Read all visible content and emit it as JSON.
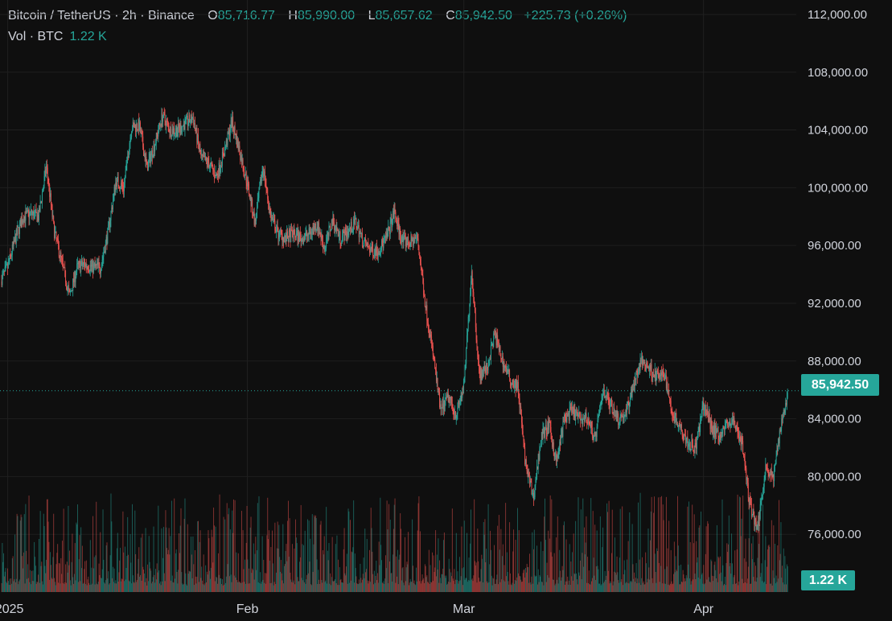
{
  "legend": {
    "symbol": "Bitcoin / TetherUS · 2h · Binance",
    "open_label": "O",
    "open": "85,716.77",
    "high_label": "H",
    "high": "85,990.00",
    "low_label": "L",
    "low": "85,657.62",
    "close_label": "C",
    "close": "85,942.50",
    "change": "+225.73 (+0.26%)"
  },
  "volume_legend": {
    "label": "Vol · BTC",
    "value": "1.22 K"
  },
  "last_price_tag": "85,942.50",
  "volume_tag": "1.22 K",
  "colors": {
    "up": "#26a69a",
    "down": "#ef5350",
    "background": "#0f0f0f",
    "grid": "#1f1f1f"
  },
  "chart_data": {
    "type": "candlestick",
    "yaxis": {
      "ticks": [
        112000,
        108000,
        104000,
        100000,
        96000,
        92000,
        88000,
        84000,
        80000,
        76000
      ],
      "tick_labels": [
        "112,000.00",
        "108,000.00",
        "104,000.00",
        "100,000.00",
        "96,000.00",
        "92,000.00",
        "88,000.00",
        "84,000.00",
        "80,000.00",
        "76,000.00"
      ],
      "range": [
        72000,
        113000
      ],
      "partial_bottom_label": ".00"
    },
    "xaxis": {
      "ticks": [
        "2025",
        "Feb",
        "Mar",
        "Apr"
      ],
      "range": [
        "2024-12-31",
        "2025-04-13"
      ]
    },
    "last_price": 85942.5,
    "path_dates": [
      "2024-12-31",
      "2025-01-01",
      "2025-01-02",
      "2025-01-03",
      "2025-01-04",
      "2025-01-05",
      "2025-01-06",
      "2025-01-07",
      "2025-01-08",
      "2025-01-09",
      "2025-01-10",
      "2025-01-11",
      "2025-01-12",
      "2025-01-13",
      "2025-01-14",
      "2025-01-15",
      "2025-01-16",
      "2025-01-17",
      "2025-01-18",
      "2025-01-19",
      "2025-01-20",
      "2025-01-21",
      "2025-01-22",
      "2025-01-23",
      "2025-01-24",
      "2025-01-25",
      "2025-01-26",
      "2025-01-27",
      "2025-01-28",
      "2025-01-29",
      "2025-01-30",
      "2025-01-31",
      "2025-02-01",
      "2025-02-02",
      "2025-02-03",
      "2025-02-04",
      "2025-02-05",
      "2025-02-06",
      "2025-02-07",
      "2025-02-08",
      "2025-02-09",
      "2025-02-10",
      "2025-02-11",
      "2025-02-12",
      "2025-02-13",
      "2025-02-14",
      "2025-02-15",
      "2025-02-16",
      "2025-02-17",
      "2025-02-18",
      "2025-02-19",
      "2025-02-20",
      "2025-02-21",
      "2025-02-22",
      "2025-02-23",
      "2025-02-24",
      "2025-02-25",
      "2025-02-26",
      "2025-02-27",
      "2025-02-28",
      "2025-03-01",
      "2025-03-02",
      "2025-03-03",
      "2025-03-04",
      "2025-03-05",
      "2025-03-06",
      "2025-03-07",
      "2025-03-08",
      "2025-03-09",
      "2025-03-10",
      "2025-03-11",
      "2025-03-12",
      "2025-03-13",
      "2025-03-14",
      "2025-03-15",
      "2025-03-16",
      "2025-03-17",
      "2025-03-18",
      "2025-03-19",
      "2025-03-20",
      "2025-03-21",
      "2025-03-22",
      "2025-03-23",
      "2025-03-24",
      "2025-03-25",
      "2025-03-26",
      "2025-03-27",
      "2025-03-28",
      "2025-03-29",
      "2025-03-30",
      "2025-03-31",
      "2025-04-01",
      "2025-04-02",
      "2025-04-03",
      "2025-04-04",
      "2025-04-05",
      "2025-04-06",
      "2025-04-07",
      "2025-04-08",
      "2025-04-09",
      "2025-04-10",
      "2025-04-11",
      "2025-04-12"
    ],
    "path_prices": [
      93500,
      94500,
      96500,
      98000,
      98200,
      98000,
      101500,
      97000,
      94800,
      92500,
      94500,
      94700,
      94500,
      94500,
      97000,
      100500,
      100000,
      104200,
      104300,
      101400,
      103000,
      105000,
      104000,
      104000,
      104500,
      104800,
      102000,
      101700,
      100800,
      102500,
      104600,
      102500,
      100300,
      97500,
      101500,
      98000,
      96800,
      96500,
      96800,
      96500,
      96800,
      97500,
      95800,
      97800,
      96500,
      97000,
      97600,
      96200,
      95700,
      95700,
      96500,
      98300,
      96300,
      96200,
      96500,
      92000,
      88500,
      84500,
      85500,
      84300,
      86200,
      94300,
      87000,
      87500,
      89900,
      88000,
      86700,
      86200,
      80700,
      78500,
      82800,
      83500,
      81000,
      84000,
      84500,
      84000,
      84000,
      82600,
      86000,
      85000,
      84000,
      84400,
      86500,
      88000,
      87500,
      86900,
      87000,
      84300,
      83500,
      82300,
      82000,
      85000,
      83500,
      82800,
      83600,
      83800,
      82200,
      78000,
      76400,
      80700,
      79800,
      83700,
      85900
    ]
  }
}
